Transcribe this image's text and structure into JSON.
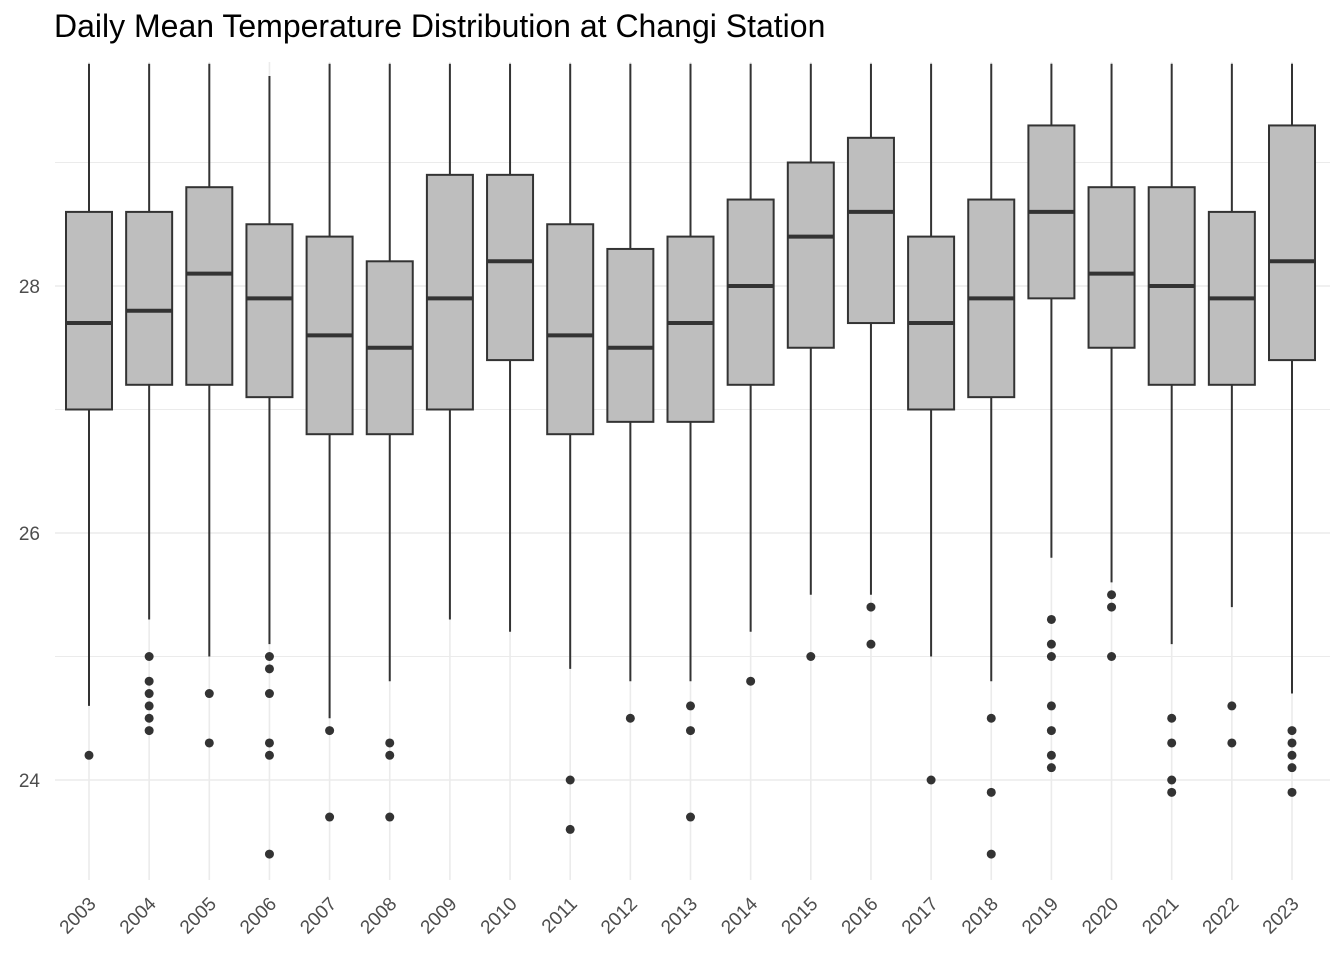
{
  "chart_data": {
    "type": "boxplot",
    "title": "Daily Mean Temperature Distribution at Changi Station",
    "xlabel": "",
    "ylabel": "",
    "ylim": [
      23.1,
      29.8
    ],
    "yticks": [
      24,
      26,
      28
    ],
    "grid": true,
    "colors": {
      "box_fill": "#bebebe",
      "box_stroke": "#333333",
      "grid": "#ebebeb",
      "outlier": "#333333"
    },
    "categories": [
      "2003",
      "2004",
      "2005",
      "2006",
      "2007",
      "2008",
      "2009",
      "2010",
      "2011",
      "2012",
      "2013",
      "2014",
      "2015",
      "2016",
      "2017",
      "2018",
      "2019",
      "2020",
      "2021",
      "2022",
      "2023"
    ],
    "boxes": [
      {
        "x": "2003",
        "whisker_low": 24.6,
        "q1": 27.0,
        "median": 27.7,
        "q3": 28.6,
        "whisker_high": 29.8,
        "outliers": [
          24.2
        ]
      },
      {
        "x": "2004",
        "whisker_low": 25.3,
        "q1": 27.2,
        "median": 27.8,
        "q3": 28.6,
        "whisker_high": 29.8,
        "outliers": [
          25.0,
          24.8,
          24.7,
          24.6,
          24.5,
          24.4
        ]
      },
      {
        "x": "2005",
        "whisker_low": 25.0,
        "q1": 27.2,
        "median": 28.1,
        "q3": 28.8,
        "whisker_high": 29.8,
        "outliers": [
          24.7,
          24.3
        ]
      },
      {
        "x": "2006",
        "whisker_low": 25.1,
        "q1": 27.1,
        "median": 27.9,
        "q3": 28.5,
        "whisker_high": 29.7,
        "outliers": [
          25.0,
          24.9,
          24.7,
          24.3,
          24.2,
          23.4
        ]
      },
      {
        "x": "2007",
        "whisker_low": 24.5,
        "q1": 26.8,
        "median": 27.6,
        "q3": 28.4,
        "whisker_high": 29.8,
        "outliers": [
          24.4,
          23.7
        ]
      },
      {
        "x": "2008",
        "whisker_low": 24.8,
        "q1": 26.8,
        "median": 27.5,
        "q3": 28.2,
        "whisker_high": 29.8,
        "outliers": [
          24.3,
          24.2,
          23.7
        ]
      },
      {
        "x": "2009",
        "whisker_low": 25.3,
        "q1": 27.0,
        "median": 27.9,
        "q3": 28.9,
        "whisker_high": 29.8,
        "outliers": []
      },
      {
        "x": "2010",
        "whisker_low": 25.2,
        "q1": 27.4,
        "median": 28.2,
        "q3": 28.9,
        "whisker_high": 29.8,
        "outliers": []
      },
      {
        "x": "2011",
        "whisker_low": 24.9,
        "q1": 26.8,
        "median": 27.6,
        "q3": 28.5,
        "whisker_high": 29.8,
        "outliers": [
          24.0,
          23.6
        ]
      },
      {
        "x": "2012",
        "whisker_low": 24.8,
        "q1": 26.9,
        "median": 27.5,
        "q3": 28.3,
        "whisker_high": 29.8,
        "outliers": [
          24.5
        ]
      },
      {
        "x": "2013",
        "whisker_low": 24.8,
        "q1": 26.9,
        "median": 27.7,
        "q3": 28.4,
        "whisker_high": 29.8,
        "outliers": [
          24.6,
          24.4,
          23.7
        ]
      },
      {
        "x": "2014",
        "whisker_low": 25.2,
        "q1": 27.2,
        "median": 28.0,
        "q3": 28.7,
        "whisker_high": 29.8,
        "outliers": [
          24.8
        ]
      },
      {
        "x": "2015",
        "whisker_low": 25.5,
        "q1": 27.5,
        "median": 28.4,
        "q3": 29.0,
        "whisker_high": 29.8,
        "outliers": [
          25.0
        ]
      },
      {
        "x": "2016",
        "whisker_low": 25.5,
        "q1": 27.7,
        "median": 28.6,
        "q3": 29.2,
        "whisker_high": 29.8,
        "outliers": [
          25.4,
          25.1
        ]
      },
      {
        "x": "2017",
        "whisker_low": 25.0,
        "q1": 27.0,
        "median": 27.7,
        "q3": 28.4,
        "whisker_high": 29.8,
        "outliers": [
          24.0
        ]
      },
      {
        "x": "2018",
        "whisker_low": 24.8,
        "q1": 27.1,
        "median": 27.9,
        "q3": 28.7,
        "whisker_high": 29.8,
        "outliers": [
          24.5,
          23.9,
          23.4
        ]
      },
      {
        "x": "2019",
        "whisker_low": 25.8,
        "q1": 27.9,
        "median": 28.6,
        "q3": 29.3,
        "whisker_high": 29.8,
        "outliers": [
          25.3,
          25.1,
          25.0,
          24.6,
          24.4,
          24.2,
          24.1
        ]
      },
      {
        "x": "2020",
        "whisker_low": 25.6,
        "q1": 27.5,
        "median": 28.1,
        "q3": 28.8,
        "whisker_high": 29.8,
        "outliers": [
          25.5,
          25.4,
          25.0
        ]
      },
      {
        "x": "2021",
        "whisker_low": 25.1,
        "q1": 27.2,
        "median": 28.0,
        "q3": 28.8,
        "whisker_high": 29.8,
        "outliers": [
          24.5,
          24.3,
          24.0,
          23.9
        ]
      },
      {
        "x": "2022",
        "whisker_low": 25.4,
        "q1": 27.2,
        "median": 27.9,
        "q3": 28.6,
        "whisker_high": 29.8,
        "outliers": [
          24.6,
          24.3
        ]
      },
      {
        "x": "2023",
        "whisker_low": 24.7,
        "q1": 27.4,
        "median": 28.2,
        "q3": 29.3,
        "whisker_high": 29.8,
        "outliers": [
          24.4,
          24.3,
          24.2,
          24.1,
          23.9
        ]
      }
    ]
  }
}
